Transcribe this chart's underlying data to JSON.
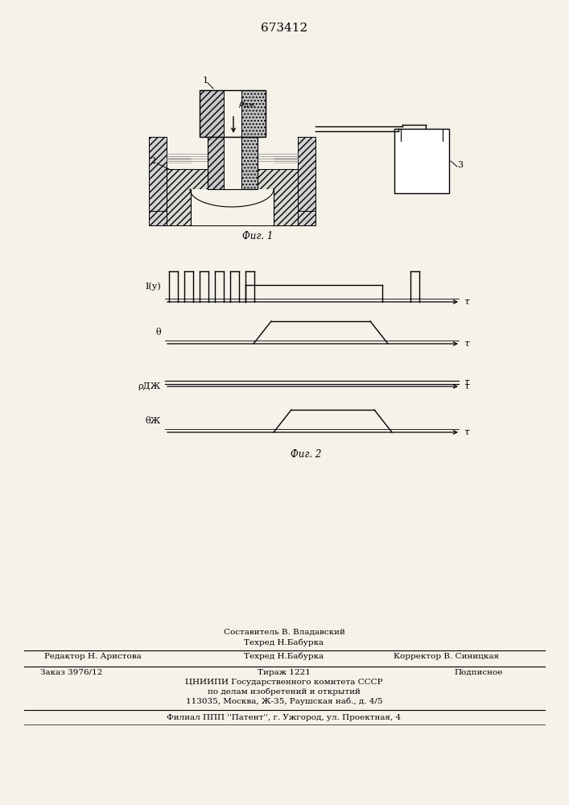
{
  "title_number": "673412",
  "bg_color": "#f5f2ea",
  "fig1_caption": "Фиг. 1",
  "fig2_caption": "Фиг. 2",
  "footer_sestavitel": "Составитель В. Владавский",
  "footer_techred": "Техред Н.Бабурка",
  "footer_editor": "Редактор Н. Аристова",
  "footer_corrector": "Корректор В. Синицкая",
  "footer_order": "Заказ 3976/12",
  "footer_tirazh": "Тираж 1221",
  "footer_podpisnoe": "Подписное",
  "footer_cniip": "ЦНИИПИ Государственного комитета СССР",
  "footer_po_delam": "по делам изобретений и открытий",
  "footer_address": "113035, Москва, Ж-35, Раушская наб., д. 4/5",
  "footer_filial": "Филиал ППП ''Патент'', г. Ужгород, ул. Проектная, 4",
  "fig1_label1": "1",
  "fig1_label2": "2",
  "fig1_label3": "3",
  "fig1_label_p": "ρДЖ",
  "wf_label0": "I(у)",
  "wf_label1": "θ",
  "wf_label2": "ρДЖ",
  "wf_label3": "θЖ",
  "tau": "τ"
}
